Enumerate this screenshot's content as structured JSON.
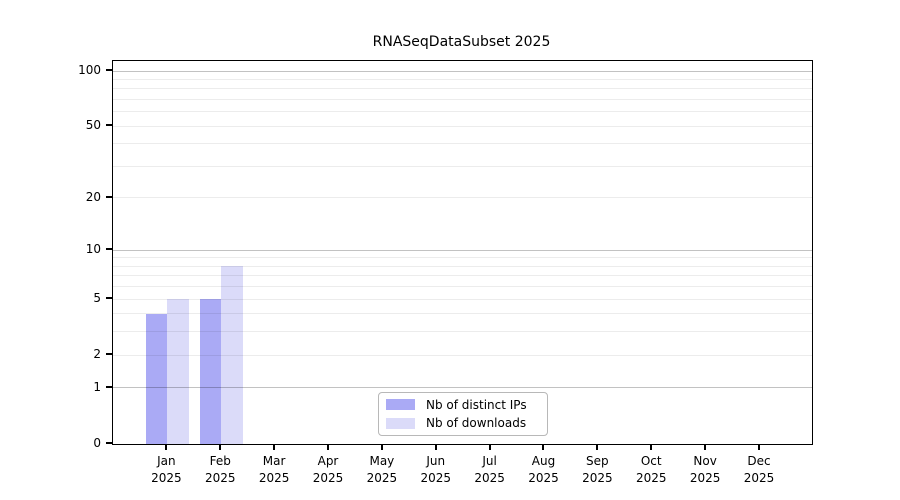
{
  "chart_data": {
    "type": "bar",
    "title": "RNASeqDataSubset 2025",
    "categories": [
      "Jan",
      "Feb",
      "Mar",
      "Apr",
      "May",
      "Jun",
      "Jul",
      "Aug",
      "Sep",
      "Oct",
      "Nov",
      "Dec"
    ],
    "year": "2025",
    "series": [
      {
        "name": "Nb of distinct IPs",
        "color": "#aaaaf5",
        "values": [
          4,
          5,
          0,
          0,
          0,
          0,
          0,
          0,
          0,
          0,
          0,
          0
        ]
      },
      {
        "name": "Nb of downloads",
        "color": "#dbdbf9",
        "values": [
          5,
          8,
          0,
          0,
          0,
          0,
          0,
          0,
          0,
          0,
          0,
          0
        ]
      }
    ],
    "xlabel": "",
    "ylabel": "",
    "yscale": "log1p",
    "ylim": [
      0,
      113
    ],
    "y_tick_values": [
      100,
      50,
      20,
      10,
      5,
      2,
      1,
      0
    ],
    "y_tick_labels": [
      "100",
      "50",
      "20",
      "10",
      "5",
      "2",
      "1",
      "0"
    ],
    "y_strong_gridlines": [
      1,
      10,
      100
    ],
    "y_minor_gridlines": [
      2,
      3,
      4,
      5,
      6,
      7,
      8,
      9,
      20,
      30,
      40,
      50,
      60,
      70,
      80,
      90
    ],
    "grid": true,
    "legend_position": "bottom-center",
    "bar_grouping": "paired-side-by-side"
  },
  "colors": {
    "background": "#ffffff",
    "axis": "#000000",
    "text": "#000000",
    "legend_border": "#b8b8b8",
    "series_ips": "#aaaaf5",
    "series_downloads": "#dbdbf9"
  }
}
